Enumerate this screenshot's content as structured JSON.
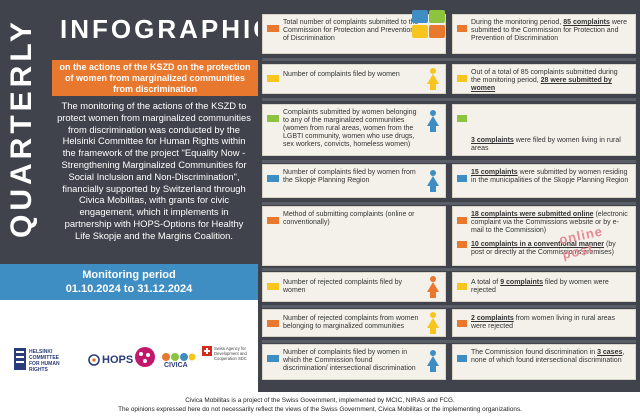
{
  "header": {
    "quarterly": "QUARTERLY",
    "infographic": "INFOGRAPHIC",
    "subtitle": "on the actions of the KSZD on the protection of women from marginalized communities from discrimination",
    "description": "The monitoring of the actions of the KSZD to protect women from marginalized communities from discrimination was conducted by the Helsinki Committee for Human Rights within the framework of the project \"Equality Now - Strengthening Marginalized Communities for Social Inclusion and Non-Discrimination\", financially supported by Switzerland through Civica Mobilitas, with grants for civic engagement, which it implements in partnership with HOPS-Options for Healthy Life Skopje and the Margins Coalition."
  },
  "period": {
    "label": "Monitoring period",
    "range": "01.10.2024 to 31.12.2024"
  },
  "logos": {
    "helsinki": "HELSINKI COMMITTEE FOR HUMAN RIGHTS",
    "hops": "HOPS",
    "civica": "CIVICA",
    "swiss": "Swiss Agency for Development and Cooperation SDC"
  },
  "rows": [
    {
      "left": "Total number of complaints submitted to the Commission for Protection and Prevention of Discrimination",
      "right_pre": "During the monitoring period, ",
      "right_num": "85 complaints",
      "right_post": " were submitted to the Commission for Protection and Prevention of Discrimination",
      "color": "#e8782e"
    },
    {
      "left": "Number of complaints filed by women",
      "right_pre": "Out of a total of 85 complaints submitted during the monitoring period, ",
      "right_num": "28 were submitted by women",
      "right_post": "",
      "color": "#f7c51e"
    },
    {
      "left": "Complaints submitted by women belonging to any of the marginalized communities (women from rural areas, women from the LGBTI community, women who use drugs, sex workers, convicts, homeless women)",
      "right_pre": "",
      "right_num": "3 complaints",
      "right_post": " were filed by women living in rural areas",
      "color": "#8cc43f"
    },
    {
      "left": "Number of complaints filed by women from the Skopje Planning Region",
      "right_pre": "",
      "right_num": "15 complaints",
      "right_post": " were submitted by women residing in the municipalities of the Skopje Planning Region",
      "color": "#3e8ec4"
    },
    {
      "left": "Method of submitting complaints (online or conventionally)",
      "right_pre": "",
      "right_num": "18 complaints were submitted online",
      "right_post": " (electronic complaint via the Commissions website or by e-mail to the Commission)",
      "right2_num": "10 complaints in a conventional manner",
      "right2_post": " (by post or directly at the Commission's premises)",
      "stamp": "online  post",
      "color": "#e8782e"
    },
    {
      "left": "Number of rejected complaints filed by women",
      "right_pre": "A total of ",
      "right_num": "9 complaints",
      "right_post": " filed by women were rejected",
      "color": "#f7c51e"
    },
    {
      "left": "Number of rejected complaints from women belonging to marginalized communities",
      "right_pre": "",
      "right_num": "2 complaints",
      "right_post": " from women living in rural areas were rejected",
      "color": "#e8782e"
    },
    {
      "left": "Number of complaints filed by women in which the Commission found discrimination/ intersectional discrimination",
      "right_pre": "The Commission found discrimination in ",
      "right_num": "3 cases",
      "right_post": ", none of which found intersectional discrimination",
      "color": "#3e8ec4"
    }
  ],
  "footer": {
    "line1": "Civica Mobilitas is a project of the Swiss Government, implemented by MCIC, NIRAS and FCG.",
    "line2": "The opinions expressed here do not necessarily reflect the views of the Swiss Government, Civica Mobilitas or the implementing organizations."
  }
}
